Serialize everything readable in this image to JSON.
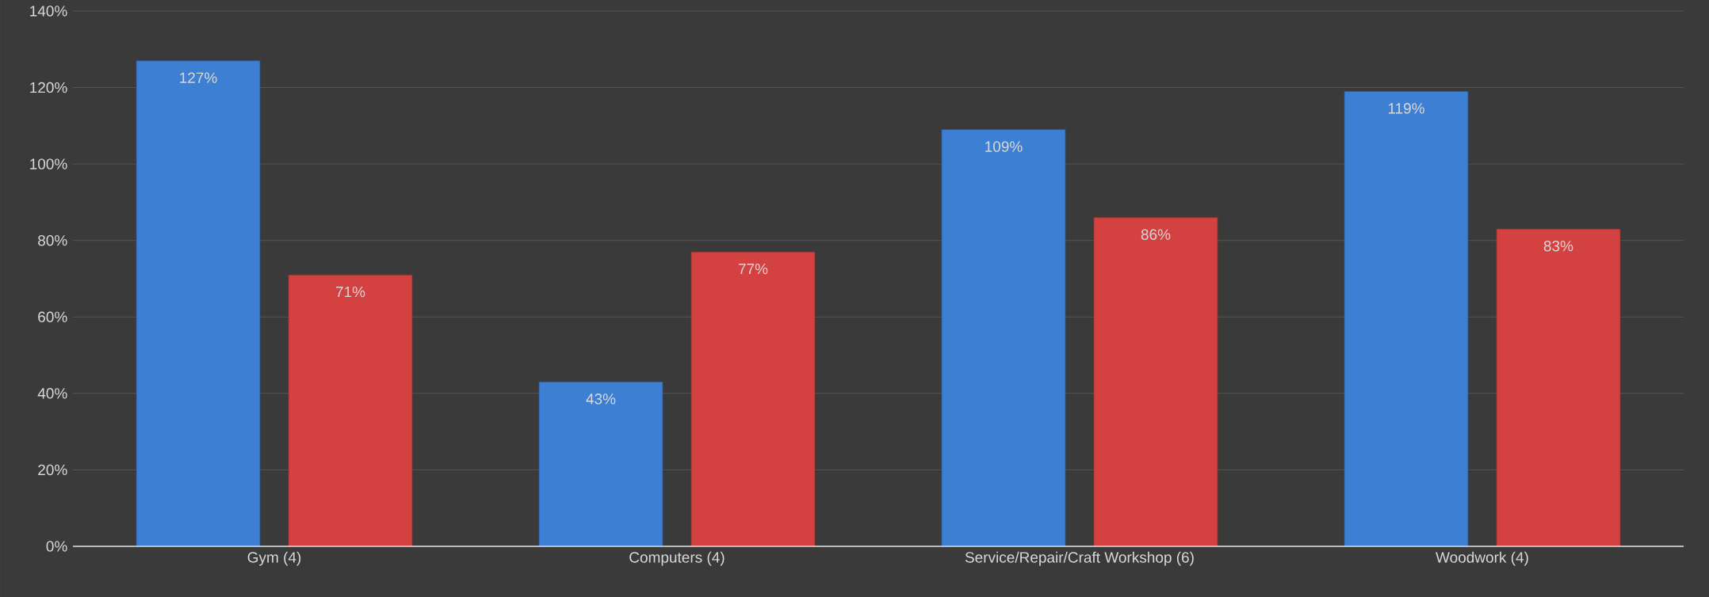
{
  "chart_data": {
    "type": "bar",
    "categories": [
      "Gym (4)",
      "Computers (4)",
      "Service/Repair/Craft Workshop (6)",
      "Woodwork (4)"
    ],
    "series": [
      {
        "color": "#3d7fd2",
        "values": [
          127,
          43,
          109,
          119
        ],
        "value_labels": [
          "127%",
          "43%",
          "109%",
          "119%"
        ]
      },
      {
        "color": "#d34141",
        "values": [
          71,
          77,
          86,
          83
        ],
        "value_labels": [
          "71%",
          "77%",
          "86%",
          "83%"
        ]
      }
    ],
    "ylim": [
      0,
      140
    ],
    "yticks": [
      {
        "value": 0,
        "label": "0%"
      },
      {
        "value": 20,
        "label": "20%"
      },
      {
        "value": 40,
        "label": "40%"
      },
      {
        "value": 60,
        "label": "60%"
      },
      {
        "value": 80,
        "label": "80%"
      },
      {
        "value": 100,
        "label": "100%"
      },
      {
        "value": 120,
        "label": "120%"
      },
      {
        "value": 140,
        "label": "140%"
      }
    ],
    "grid": "y"
  }
}
